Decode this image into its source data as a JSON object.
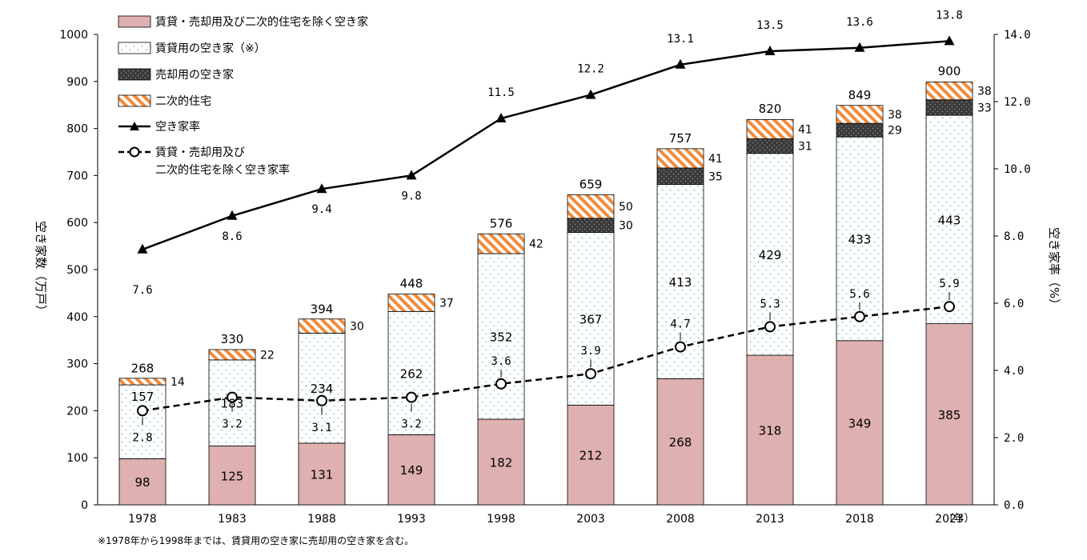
{
  "chart_data": {
    "type": "bar",
    "categories": [
      "1978",
      "1983",
      "1988",
      "1993",
      "1998",
      "2003",
      "2008",
      "2013",
      "2018",
      "2023"
    ],
    "totals": [
      268,
      330,
      394,
      448,
      576,
      659,
      757,
      820,
      849,
      900
    ],
    "series": [
      {
        "name": "賃貸・売却用及び二次的住宅を除く空き家",
        "type": "bar",
        "axis": "left",
        "values": [
          98,
          125,
          131,
          149,
          182,
          212,
          268,
          318,
          349,
          385
        ]
      },
      {
        "name": "賃貸用の空き家（※）",
        "type": "bar",
        "axis": "left",
        "values": [
          157,
          183,
          234,
          262,
          352,
          367,
          413,
          429,
          433,
          443
        ]
      },
      {
        "name": "売却用の空き家",
        "type": "bar",
        "axis": "left",
        "values": [
          null,
          null,
          null,
          null,
          null,
          30,
          35,
          31,
          29,
          33
        ]
      },
      {
        "name": "二次的住宅",
        "type": "bar",
        "axis": "left",
        "values": [
          14,
          22,
          30,
          37,
          42,
          50,
          41,
          41,
          38,
          38
        ]
      },
      {
        "name": "空き家率",
        "type": "line",
        "axis": "right",
        "values": [
          7.6,
          8.6,
          9.4,
          9.8,
          11.5,
          12.2,
          13.1,
          13.5,
          13.6,
          13.8
        ]
      },
      {
        "name": "賃貸・売却用及び\n二次的住宅を除く空き家率",
        "type": "line",
        "axis": "right",
        "values": [
          2.8,
          3.2,
          3.1,
          3.2,
          3.6,
          3.9,
          4.7,
          5.3,
          5.6,
          5.9
        ]
      }
    ],
    "ylabel": "空き家数（万戸）",
    "y2label": "空き家率（%）",
    "xunit": "（年）",
    "ylim": [
      0,
      1000
    ],
    "y2lim": [
      0,
      14
    ],
    "yticks": [
      "0",
      "100",
      "200",
      "300",
      "400",
      "500",
      "600",
      "700",
      "800",
      "900",
      "1000"
    ],
    "y2ticks": [
      "0.0",
      "2.0",
      "4.0",
      "6.0",
      "8.0",
      "10.0",
      "12.0",
      "14.0"
    ],
    "line_labels_rate": [
      "7.6",
      "8.6",
      "9.4",
      "9.8",
      "11.5",
      "12.2",
      "13.1",
      "13.5",
      "13.6",
      "13.8"
    ],
    "line_labels_other": [
      "2.8",
      "3.2",
      "3.1",
      "3.2",
      "3.6",
      "3.9",
      "4.7",
      "5.3",
      "5.6",
      "5.9"
    ],
    "note": "※1978年から1998年までは、賃貸用の空き家に売却用の空き家を含む。",
    "legend_position": "top-left",
    "grid": false,
    "colors": {
      "other": "#dfb0b0",
      "rental_bg": "#ffffff",
      "rental_dot": "#6fb7cc",
      "sale": "#3a3a3a",
      "secondary_stripe": "#f28b3a",
      "line": "#000000"
    }
  }
}
